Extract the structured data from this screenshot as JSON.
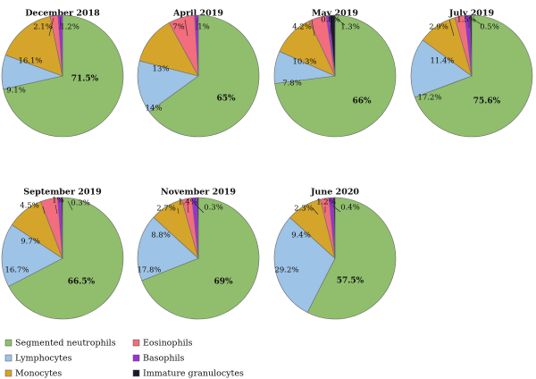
{
  "chart_data": {
    "type": "pie",
    "colors": {
      "Segmented neutrophils": "#90be6d",
      "Lymphocytes": "#9dc3e6",
      "Monocytes": "#d4a52a",
      "Eosinophils": "#f26d7d",
      "Basophils": "#9b30d9",
      "Immature granulocytes": "#1a1a2e"
    },
    "legend": {
      "position": "bottom-left",
      "entries": [
        "Segmented neutrophils",
        "Lymphocytes",
        "Monocytes",
        "Eosinophils",
        "Basophils",
        "Immature granulocytes"
      ]
    },
    "charts": [
      {
        "title": "December 2018",
        "slices": [
          {
            "name": "Segmented neutrophils",
            "value": 71.5,
            "label": "71.5%"
          },
          {
            "name": "Lymphocytes",
            "value": 9.1,
            "label": "9.1%"
          },
          {
            "name": "Monocytes",
            "value": 16.1,
            "label": "16.1%"
          },
          {
            "name": "Eosinophils",
            "value": 2.1,
            "label": "2.1%"
          },
          {
            "name": "Basophils",
            "value": 1.2,
            "label": "1.2%"
          }
        ]
      },
      {
        "title": "April 2019",
        "slices": [
          {
            "name": "Segmented neutrophils",
            "value": 65,
            "label": "65%"
          },
          {
            "name": "Lymphocytes",
            "value": 14,
            "label": "14%"
          },
          {
            "name": "Monocytes",
            "value": 13,
            "label": "13%"
          },
          {
            "name": "Eosinophils",
            "value": 7,
            "label": "7%"
          },
          {
            "name": "Basophils",
            "value": 1,
            "label": "1%"
          }
        ]
      },
      {
        "title": "May 2019",
        "slices": [
          {
            "name": "Segmented neutrophils",
            "value": 66,
            "label": "66%"
          },
          {
            "name": "Lymphocytes",
            "value": 7.8,
            "label": "7.8%"
          },
          {
            "name": "Monocytes",
            "value": 10.3,
            "label": "10.3%"
          },
          {
            "name": "Eosinophils",
            "value": 4.2,
            "label": "4.2%"
          },
          {
            "name": "Basophils",
            "value": 0.8,
            "label": "0.8%"
          },
          {
            "name": "Immature granulocytes",
            "value": 1.3,
            "label": "1.3%"
          }
        ]
      },
      {
        "title": "July 2019",
        "slices": [
          {
            "name": "Segmented neutrophils",
            "value": 75.6,
            "label": "75.6%"
          },
          {
            "name": "Lymphocytes",
            "value": 17.2,
            "label": "17.2%"
          },
          {
            "name": "Monocytes",
            "value": 11.4,
            "label": "11.4%"
          },
          {
            "name": "Eosinophils",
            "value": 2.9,
            "label": "2.9%"
          },
          {
            "name": "Basophils",
            "value": 1.5,
            "label": "1.5%"
          },
          {
            "name": "Immature granulocytes",
            "value": 0.5,
            "label": "0.5%"
          }
        ]
      },
      {
        "title": "September 2019",
        "slices": [
          {
            "name": "Segmented neutrophils",
            "value": 66.5,
            "label": "66.5%"
          },
          {
            "name": "Lymphocytes",
            "value": 16.7,
            "label": "16.7%"
          },
          {
            "name": "Monocytes",
            "value": 9.7,
            "label": "9.7%"
          },
          {
            "name": "Eosinophils",
            "value": 4.5,
            "label": "4.5%"
          },
          {
            "name": "Basophils",
            "value": 1,
            "label": "1%"
          },
          {
            "name": "Immature granulocytes",
            "value": 0.3,
            "label": "0.3%"
          }
        ]
      },
      {
        "title": "November 2019",
        "slices": [
          {
            "name": "Segmented neutrophils",
            "value": 69,
            "label": "69%"
          },
          {
            "name": "Lymphocytes",
            "value": 17.8,
            "label": "17.8%"
          },
          {
            "name": "Monocytes",
            "value": 8.8,
            "label": "8.8%"
          },
          {
            "name": "Eosinophils",
            "value": 2.7,
            "label": "2.7%"
          },
          {
            "name": "Basophils",
            "value": 1.4,
            "label": "1.4%"
          },
          {
            "name": "Immature granulocytes",
            "value": 0.3,
            "label": "0.3%"
          }
        ]
      },
      {
        "title": "June 2020",
        "slices": [
          {
            "name": "Segmented neutrophils",
            "value": 57.5,
            "label": "57.5%"
          },
          {
            "name": "Lymphocytes",
            "value": 29.2,
            "label": "29.2%"
          },
          {
            "name": "Monocytes",
            "value": 9.4,
            "label": "9.4%"
          },
          {
            "name": "Eosinophils",
            "value": 2.3,
            "label": "2.3%"
          },
          {
            "name": "Basophils",
            "value": 1.2,
            "label": "1.2%"
          },
          {
            "name": "Immature granulocytes",
            "value": 0.4,
            "label": "0.4%"
          }
        ]
      }
    ]
  }
}
